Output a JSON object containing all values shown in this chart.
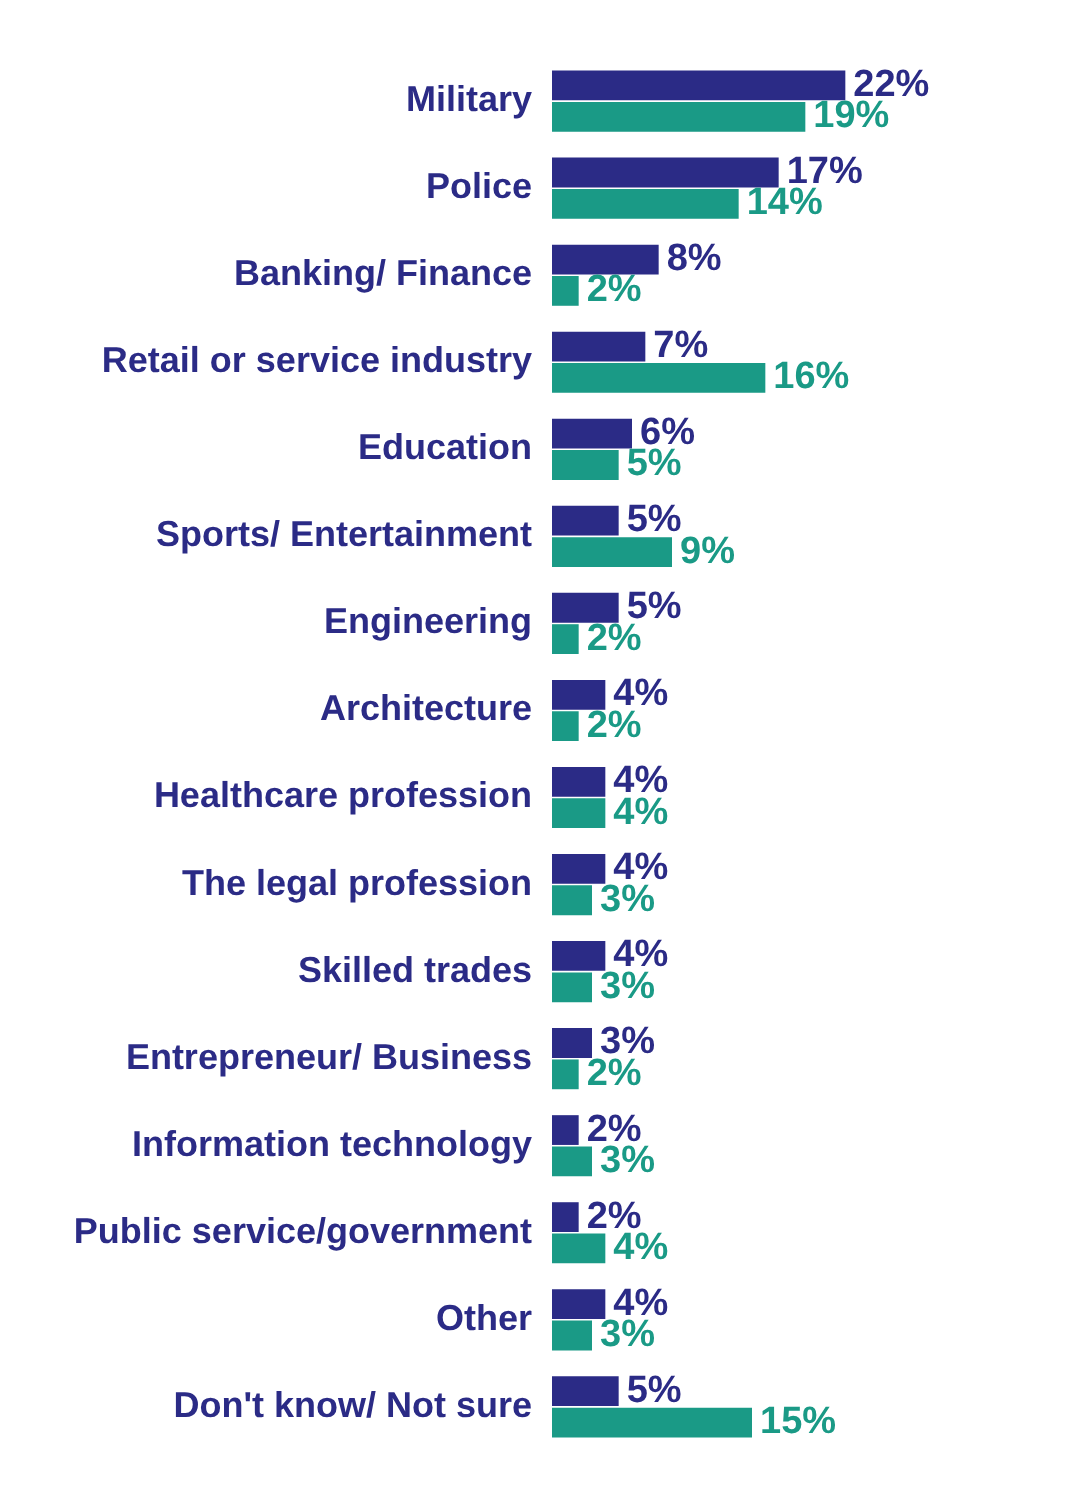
{
  "chart_data": {
    "type": "bar",
    "orientation": "horizontal",
    "categories": [
      "Military",
      "Police",
      "Banking/ Finance",
      "Retail or service industry",
      "Education",
      "Sports/ Entertainment",
      "Engineering",
      "Architecture",
      "Healthcare profession",
      "The legal profession",
      "Skilled trades",
      "Entrepreneur/ Business",
      "Information technology",
      "Public service/government",
      "Other",
      "Don't know/ Not sure"
    ],
    "series": [
      {
        "color": "#2b2b86",
        "values": [
          22,
          17,
          8,
          7,
          6,
          5,
          5,
          4,
          4,
          4,
          4,
          3,
          2,
          2,
          4,
          5
        ],
        "value_labels": [
          "22%",
          "17%",
          "8%",
          "7%",
          "6%",
          "5%",
          "5%",
          "4%",
          "4%",
          "4%",
          "4%",
          "3%",
          "2%",
          "2%",
          "4%",
          "5%"
        ]
      },
      {
        "color": "#1a9a86",
        "values": [
          19,
          14,
          2,
          16,
          5,
          9,
          2,
          2,
          4,
          3,
          3,
          2,
          3,
          4,
          3,
          15
        ],
        "value_labels": [
          "19%",
          "14%",
          "2%",
          "16%",
          "5%",
          "9%",
          "2%",
          "2%",
          "4%",
          "3%",
          "3%",
          "2%",
          "3%",
          "4%",
          "3%",
          "15%"
        ]
      }
    ],
    "grid": false,
    "legend": false
  }
}
